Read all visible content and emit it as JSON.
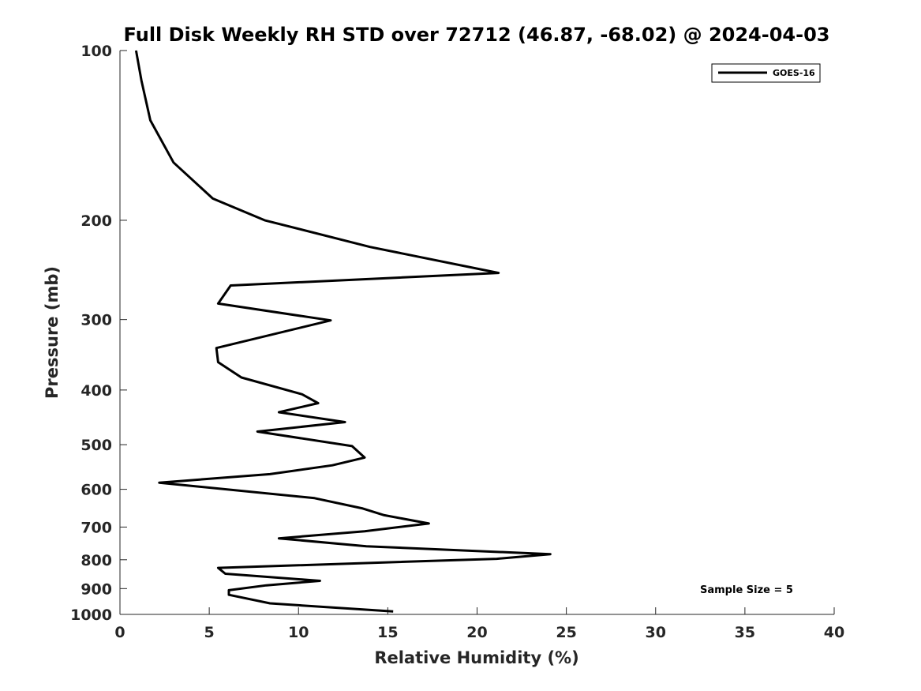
{
  "chart_data": {
    "type": "line",
    "title": "Full Disk Weekly RH STD over 72712 (46.87, -68.02) @ 2024-04-03",
    "xlabel": "Relative Humidity (%)",
    "ylabel": "Pressure (mb)",
    "xlim": [
      0,
      40
    ],
    "ylim": [
      1000,
      100
    ],
    "y_scale": "log",
    "x_ticks": [
      0,
      5,
      10,
      15,
      20,
      25,
      30,
      35,
      40
    ],
    "y_ticks": [
      100,
      200,
      300,
      400,
      500,
      600,
      700,
      800,
      900,
      1000
    ],
    "grid": false,
    "legend": {
      "position": "top-right",
      "entries": [
        "GOES-16"
      ]
    },
    "annotation": "Sample Size = 5",
    "series": [
      {
        "name": "GOES-16",
        "color": "#000000",
        "x": [
          0.9,
          1.2,
          1.7,
          3.0,
          5.2,
          8.1,
          14.0,
          21.2,
          6.2,
          5.5,
          11.8,
          5.4,
          5.5,
          6.8,
          10.2,
          11.1,
          8.9,
          12.6,
          7.7,
          13.0,
          13.7,
          11.9,
          8.4,
          2.2,
          10.9,
          13.6,
          14.8,
          17.3,
          13.7,
          8.9,
          13.8,
          24.1,
          21.1,
          5.5,
          5.9,
          11.2,
          8.2,
          6.1,
          6.1,
          8.4,
          15.3
        ],
        "y": [
          100,
          113,
          133,
          158,
          183,
          200,
          223,
          248,
          261,
          281,
          301,
          337,
          357,
          380,
          407,
          422,
          438,
          456,
          474,
          503,
          527,
          544,
          564,
          584,
          622,
          649,
          667,
          690,
          712,
          733,
          757,
          782,
          797,
          827,
          847,
          872,
          888,
          906,
          923,
          956,
          988
        ]
      }
    ]
  }
}
